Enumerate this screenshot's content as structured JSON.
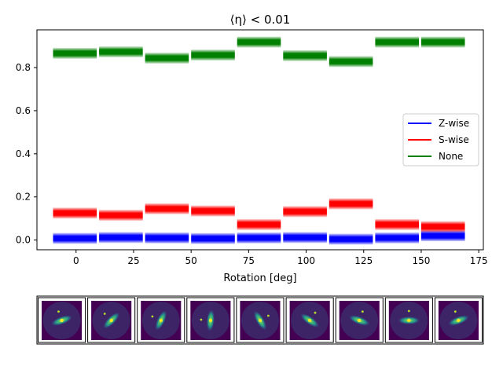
{
  "chart_data": {
    "type": "bar",
    "title": "⟨η⟩ < 0.01",
    "xlabel": "Rotation [deg]",
    "ylabel": "",
    "xlim": [
      -17,
      177
    ],
    "ylim": [
      -0.045,
      0.975
    ],
    "xticks": [
      0,
      25,
      50,
      75,
      100,
      125,
      150,
      175
    ],
    "yticks": [
      0.0,
      0.2,
      0.4,
      0.6,
      0.8
    ],
    "bar_x_start": [
      -10,
      10,
      30,
      50,
      70,
      90,
      110,
      130,
      150
    ],
    "bar_width_deg": 19,
    "series": [
      {
        "name": "Z-wise",
        "color": "#0000ff",
        "values": [
          0.008,
          0.012,
          0.01,
          0.007,
          0.01,
          0.012,
          0.004,
          0.01,
          0.02
        ]
      },
      {
        "name": "S-wise",
        "color": "#ff0000",
        "values": [
          0.125,
          0.115,
          0.145,
          0.135,
          0.072,
          0.132,
          0.168,
          0.072,
          0.062
        ]
      },
      {
        "name": "None",
        "color": "#008000",
        "values": [
          0.866,
          0.873,
          0.844,
          0.858,
          0.918,
          0.855,
          0.828,
          0.918,
          0.918
        ]
      }
    ],
    "legend_position": "center-right",
    "thumbnail_count": 9,
    "thumbnail_orientations_deg": [
      -20,
      -45,
      -65,
      -85,
      60,
      35,
      20,
      0,
      -20
    ]
  }
}
